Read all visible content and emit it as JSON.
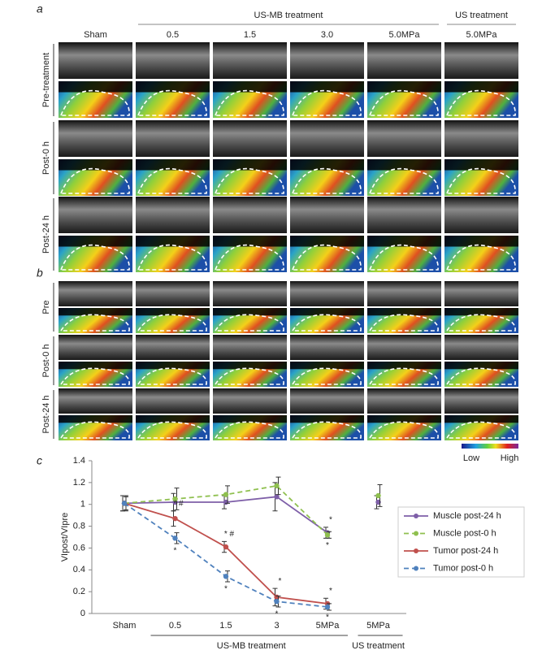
{
  "panel_a": {
    "label": "a",
    "column_groups": [
      {
        "label": "US-MB treatment",
        "size": 4
      },
      {
        "label": "US treatment",
        "size": 1
      }
    ],
    "columns": [
      "Sham",
      "0.5",
      "1.5",
      "3.0",
      "5.0MPa",
      "5.0MPa"
    ],
    "rows": [
      "Pre-treatment",
      "Post-0 h",
      "Post-24 h"
    ]
  },
  "panel_b": {
    "label": "b",
    "rows": [
      "Pre",
      "Post-0 h",
      "Post-24 h"
    ]
  },
  "colorbar": {
    "low": "Low",
    "high": "High"
  },
  "chart_data": {
    "type": "line",
    "label": "c",
    "ylabel": "VIpost/VIpre",
    "categories": [
      "Sham",
      "0.5",
      "1.5",
      "3",
      "5MPa",
      "5MPa"
    ],
    "x_groups": [
      {
        "label": "US-MB treatment",
        "size": 4
      },
      {
        "label": "US treatment",
        "size": 1
      }
    ],
    "ylim": [
      0,
      1.4
    ],
    "yticks": [
      0,
      0.2,
      0.4,
      0.6,
      0.8,
      1,
      1.2,
      1.4
    ],
    "series": [
      {
        "name": "Muscle post-24 h",
        "color": "#7e5fa8",
        "dashed": false,
        "values": [
          1.01,
          1.02,
          1.02,
          1.07,
          0.74,
          1.02
        ],
        "errors": [
          0.07,
          0.08,
          0.06,
          0.13,
          0.05,
          0.06
        ],
        "annotations": [
          null,
          null,
          null,
          null,
          "*",
          null
        ]
      },
      {
        "name": "Muscle post-0 h",
        "color": "#8fc04f",
        "dashed": true,
        "values": [
          1.01,
          1.05,
          1.09,
          1.17,
          0.72,
          1.08
        ],
        "errors": [
          0.07,
          0.1,
          0.08,
          0.08,
          0.03,
          0.1
        ],
        "annotations": [
          null,
          null,
          null,
          null,
          "*",
          null
        ]
      },
      {
        "name": "Tumor post-24 h",
        "color": "#c0504d",
        "dashed": false,
        "values": [
          1.01,
          0.87,
          0.61,
          0.15,
          0.09,
          null
        ],
        "errors": [
          0.07,
          0.07,
          0.05,
          0.08,
          0.05,
          null
        ],
        "annotations": [
          null,
          "* #",
          "* #",
          "*",
          "*",
          null
        ]
      },
      {
        "name": "Tumor post-0 h",
        "color": "#4f81bd",
        "dashed": true,
        "values": [
          1.01,
          0.69,
          0.34,
          0.11,
          0.06,
          null
        ],
        "errors": [
          0.06,
          0.05,
          0.05,
          0.05,
          0.03,
          null
        ],
        "annotations": [
          null,
          "*",
          "*",
          "*",
          "*",
          null
        ]
      }
    ]
  }
}
